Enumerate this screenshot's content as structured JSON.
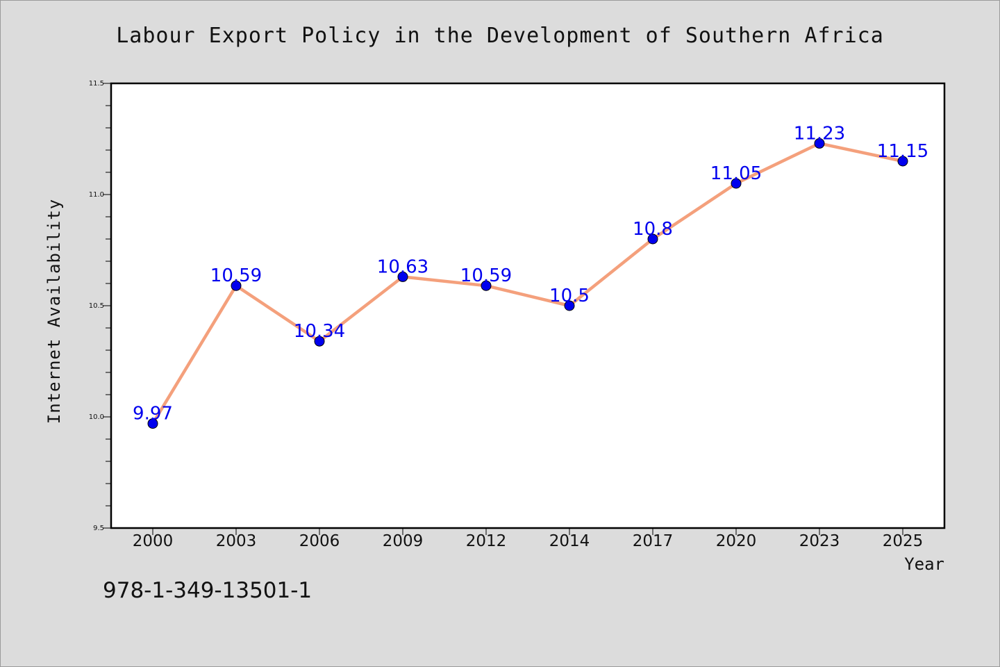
{
  "chart_data": {
    "type": "line",
    "title": "Labour Export Policy in the Development of Southern Africa",
    "xlabel": "Year",
    "ylabel": "Internet Availability",
    "categories": [
      "2000",
      "2003",
      "2006",
      "2009",
      "2012",
      "2014",
      "2017",
      "2020",
      "2023",
      "2025"
    ],
    "series": [
      {
        "values": [
          9.97,
          10.59,
          10.34,
          10.63,
          10.59,
          10.5,
          10.8,
          11.05,
          11.23,
          11.15
        ],
        "point_labels": [
          "9.97",
          "10.59",
          "10.34",
          "10.63",
          "10.59",
          "10.5",
          "10.8",
          "11.05",
          "11.23",
          "11.15"
        ],
        "line_color": "#f4a07c",
        "marker_color": "#0000ee",
        "label_color": "#0000ee"
      }
    ],
    "ylim": [
      9.5,
      11.5
    ],
    "yticks": [
      "9.5",
      "10.0",
      "10.5",
      "11.0",
      "11.5"
    ],
    "grid": false,
    "legend": "none"
  },
  "footer": {
    "isbn": "978-1-349-13501-1"
  },
  "colors": {
    "background": "#dcdcdc",
    "plot_background": "#ffffff"
  }
}
